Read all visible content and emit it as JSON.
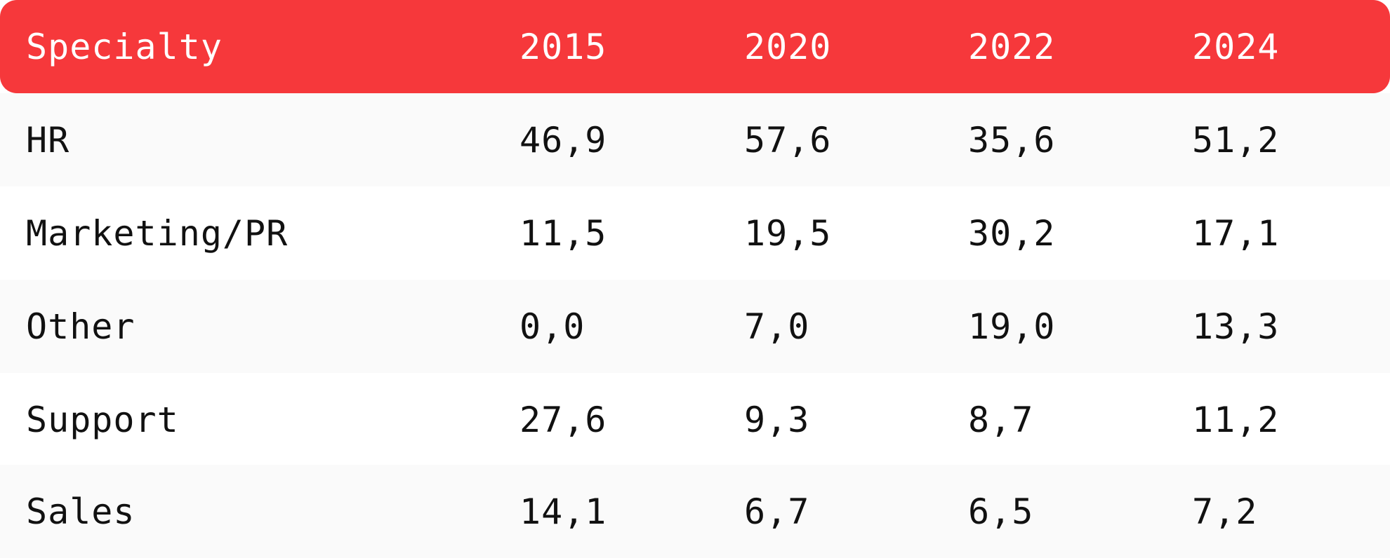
{
  "colors": {
    "header_bg": "#f6383b",
    "row_odd_bg": "#fafafa",
    "row_even_bg": "#ffffff"
  },
  "chart_data": {
    "type": "table",
    "columns": [
      "Specialty",
      "2015",
      "2020",
      "2022",
      "2024"
    ],
    "rows": [
      [
        "HR",
        "46,9",
        "57,6",
        "35,6",
        "51,2"
      ],
      [
        "Marketing/PR",
        "11,5",
        "19,5",
        "30,2",
        "17,1"
      ],
      [
        "Other",
        "0,0",
        "7,0",
        "19,0",
        "13,3"
      ],
      [
        "Support",
        "27,6",
        "9,3",
        "8,7",
        "11,2"
      ],
      [
        "Sales",
        "14,1",
        "6,7",
        "6,5",
        "7,2"
      ]
    ]
  }
}
